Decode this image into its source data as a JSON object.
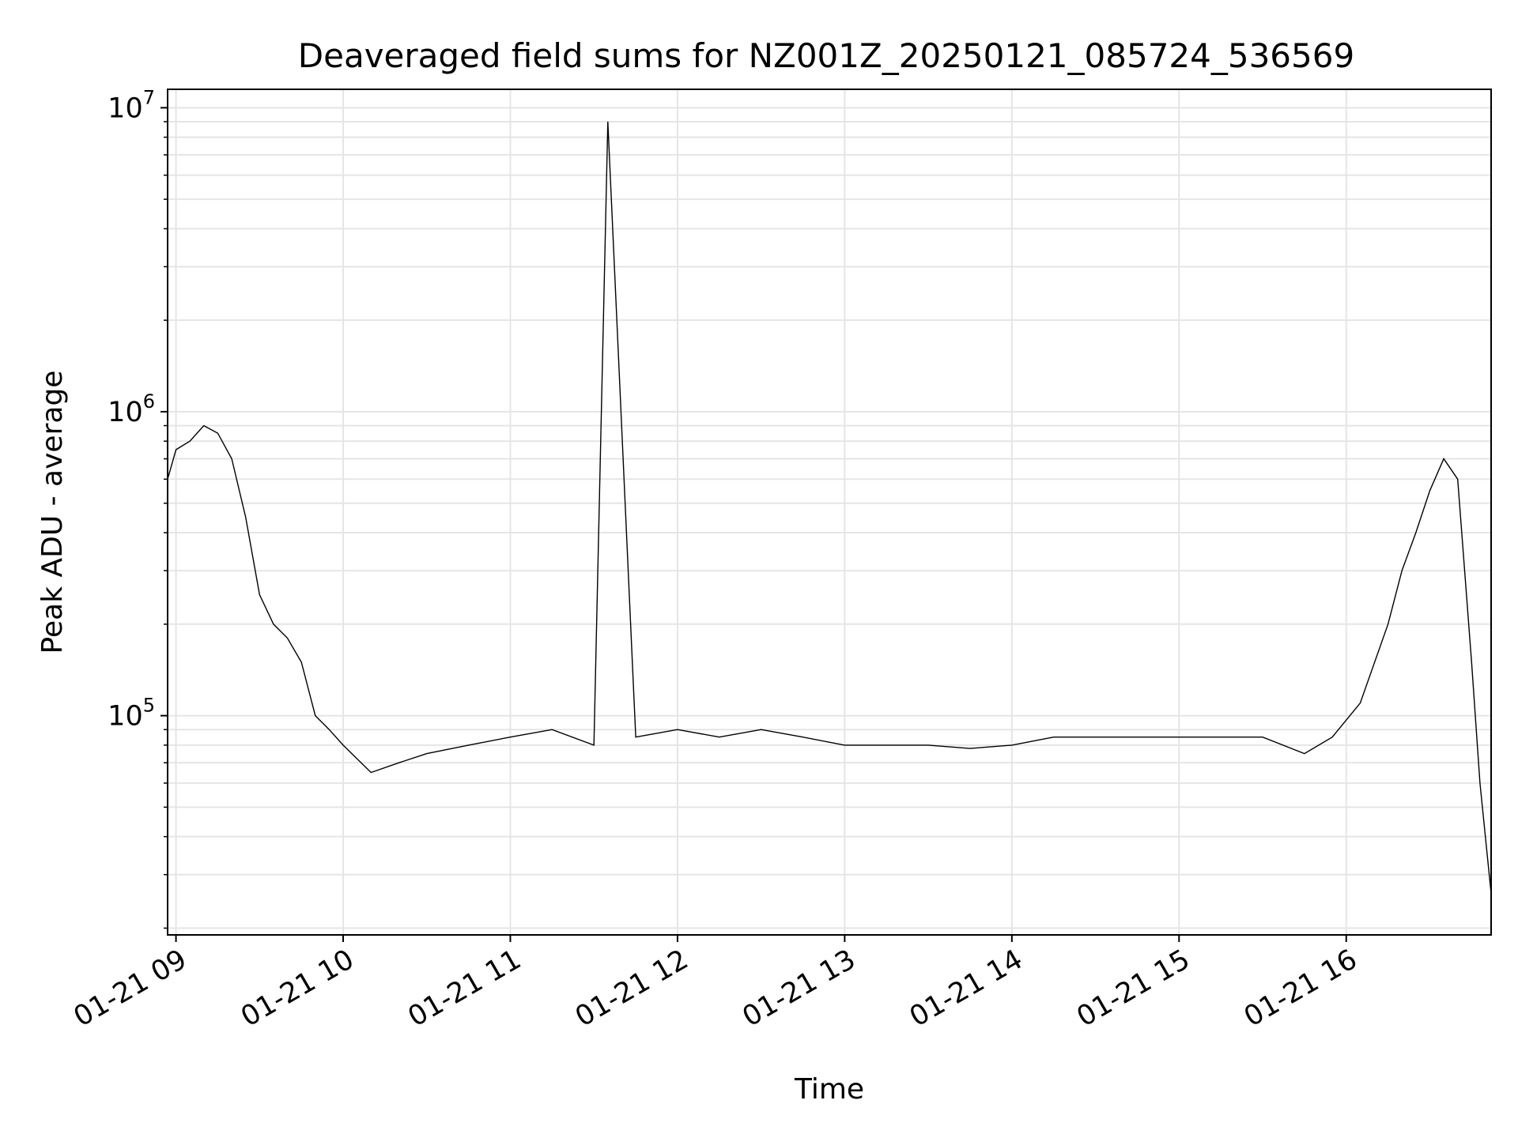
{
  "chart_data": {
    "type": "line",
    "title": "Deaveraged field sums for NZ001Z_20250121_085724_536569",
    "xlabel": "Time",
    "ylabel": "Peak ADU - average",
    "y_scale": "log",
    "ylim": [
      19000,
      11500000
    ],
    "xlim": [
      "2025-01-21 08:57",
      "2025-01-21 16:52"
    ],
    "grid": true,
    "line_color": "#000000",
    "grid_color": "#e5e5e5",
    "x_ticks": [
      {
        "value": "2025-01-21 09:00",
        "label": "01-21 09"
      },
      {
        "value": "2025-01-21 10:00",
        "label": "01-21 10"
      },
      {
        "value": "2025-01-21 11:00",
        "label": "01-21 11"
      },
      {
        "value": "2025-01-21 12:00",
        "label": "01-21 12"
      },
      {
        "value": "2025-01-21 13:00",
        "label": "01-21 13"
      },
      {
        "value": "2025-01-21 14:00",
        "label": "01-21 14"
      },
      {
        "value": "2025-01-21 15:00",
        "label": "01-21 15"
      },
      {
        "value": "2025-01-21 16:00",
        "label": "01-21 16"
      }
    ],
    "y_ticks": [
      {
        "value": 100000,
        "base": "10",
        "exp": "5"
      },
      {
        "value": 1000000,
        "base": "10",
        "exp": "6"
      },
      {
        "value": 10000000,
        "base": "10",
        "exp": "7"
      }
    ],
    "series": [
      {
        "x": [
          "2025-01-21 08:57",
          "2025-01-21 09:00",
          "2025-01-21 09:05",
          "2025-01-21 09:10",
          "2025-01-21 09:15",
          "2025-01-21 09:20",
          "2025-01-21 09:25",
          "2025-01-21 09:30",
          "2025-01-21 09:35",
          "2025-01-21 09:40",
          "2025-01-21 09:45",
          "2025-01-21 09:50",
          "2025-01-21 09:55",
          "2025-01-21 10:00",
          "2025-01-21 10:10",
          "2025-01-21 10:20",
          "2025-01-21 10:30",
          "2025-01-21 10:45",
          "2025-01-21 11:00",
          "2025-01-21 11:15",
          "2025-01-21 11:30",
          "2025-01-21 11:35",
          "2025-01-21 11:45",
          "2025-01-21 12:00",
          "2025-01-21 12:15",
          "2025-01-21 12:30",
          "2025-01-21 12:45",
          "2025-01-21 13:00",
          "2025-01-21 13:15",
          "2025-01-21 13:30",
          "2025-01-21 13:45",
          "2025-01-21 14:00",
          "2025-01-21 14:15",
          "2025-01-21 14:30",
          "2025-01-21 14:45",
          "2025-01-21 15:00",
          "2025-01-21 15:15",
          "2025-01-21 15:30",
          "2025-01-21 15:45",
          "2025-01-21 15:55",
          "2025-01-21 16:05",
          "2025-01-21 16:15",
          "2025-01-21 16:20",
          "2025-01-21 16:25",
          "2025-01-21 16:30",
          "2025-01-21 16:35",
          "2025-01-21 16:40",
          "2025-01-21 16:45",
          "2025-01-21 16:48",
          "2025-01-21 16:52"
        ],
        "y": [
          600000,
          750000,
          800000,
          900000,
          850000,
          700000,
          450000,
          250000,
          200000,
          180000,
          150000,
          100000,
          90000,
          80000,
          65000,
          70000,
          75000,
          80000,
          85000,
          90000,
          80000,
          9000000,
          85000,
          90000,
          85000,
          90000,
          85000,
          80000,
          80000,
          80000,
          78000,
          80000,
          85000,
          85000,
          85000,
          85000,
          85000,
          85000,
          75000,
          85000,
          110000,
          200000,
          300000,
          400000,
          550000,
          700000,
          600000,
          150000,
          60000,
          26000
        ]
      }
    ]
  }
}
